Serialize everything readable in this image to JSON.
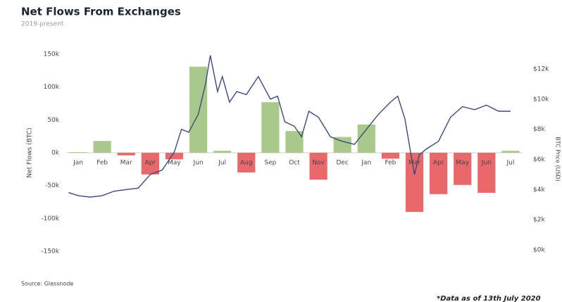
{
  "chart_data": {
    "type": "bar-line",
    "title": "Net Flows From Exchanges",
    "subtitle": "2019-present",
    "source": "Source: Glassnode",
    "note": "*Data as of 13th July 2020",
    "ylabel": "Net Flows (BTC)",
    "y2label": "BTC Price (USD)",
    "categories": [
      "Jan",
      "Feb",
      "Mar",
      "Apr",
      "May",
      "Jun",
      "Jul",
      "Aug",
      "Sep",
      "Oct",
      "Nov",
      "Dec",
      "Jan",
      "Feb",
      "Mar",
      "Apr",
      "May",
      "Jun",
      "Jul"
    ],
    "values": [
      1000,
      18000,
      -4000,
      -33000,
      -10000,
      131000,
      3000,
      -30000,
      77000,
      33000,
      -41000,
      24000,
      43000,
      -9000,
      -90000,
      -63000,
      -49000,
      -61000,
      3000
    ],
    "positive_color": "#a9c98c",
    "negative_color": "#e8686c",
    "ylim": [
      -150000,
      150000
    ],
    "yticks": [
      {
        "value": -150000,
        "label": "-150k"
      },
      {
        "value": -100000,
        "label": "-100k"
      },
      {
        "value": -50000,
        "label": "-50k"
      },
      {
        "value": 0,
        "label": "0k"
      },
      {
        "value": 50000,
        "label": "50k"
      },
      {
        "value": 100000,
        "label": "100k"
      },
      {
        "value": 150000,
        "label": "150k"
      }
    ],
    "line": {
      "axis": "y2",
      "color": "#3b4a7a",
      "x": [
        -0.4,
        0,
        0.5,
        1,
        1.5,
        2,
        2.5,
        3,
        3.5,
        4,
        4.3,
        4.6,
        5,
        5.3,
        5.5,
        5.8,
        6,
        6.3,
        6.6,
        7,
        7.5,
        8,
        8.3,
        8.6,
        9,
        9.3,
        9.6,
        10,
        10.5,
        11,
        11.5,
        12,
        12.5,
        13,
        13.3,
        13.6,
        14,
        14.2,
        14.5,
        15,
        15.5,
        16,
        16.5,
        17,
        17.5,
        18
      ],
      "values": [
        3800,
        3600,
        3500,
        3600,
        3900,
        4000,
        4100,
        5000,
        5300,
        6500,
        8000,
        7800,
        9000,
        11000,
        12900,
        10500,
        11500,
        9800,
        10500,
        10300,
        11500,
        10000,
        10200,
        8500,
        8200,
        7500,
        9200,
        8800,
        7500,
        7200,
        7000,
        8000,
        9000,
        9800,
        10200,
        8700,
        5000,
        6300,
        6700,
        7200,
        8800,
        9500,
        9300,
        9600,
        9200,
        9200
      ]
    },
    "xlim": [
      -0.5,
      18.5
    ],
    "y2lim": [
      0,
      12000
    ],
    "y2ticks": [
      {
        "value": 0,
        "label": "$0k"
      },
      {
        "value": 2000,
        "label": "$2k"
      },
      {
        "value": 4000,
        "label": "$4k"
      },
      {
        "value": 6000,
        "label": "$6k"
      },
      {
        "value": 8000,
        "label": "$8k"
      },
      {
        "value": 10000,
        "label": "$10k"
      },
      {
        "value": 12000,
        "label": "$12k"
      }
    ]
  }
}
